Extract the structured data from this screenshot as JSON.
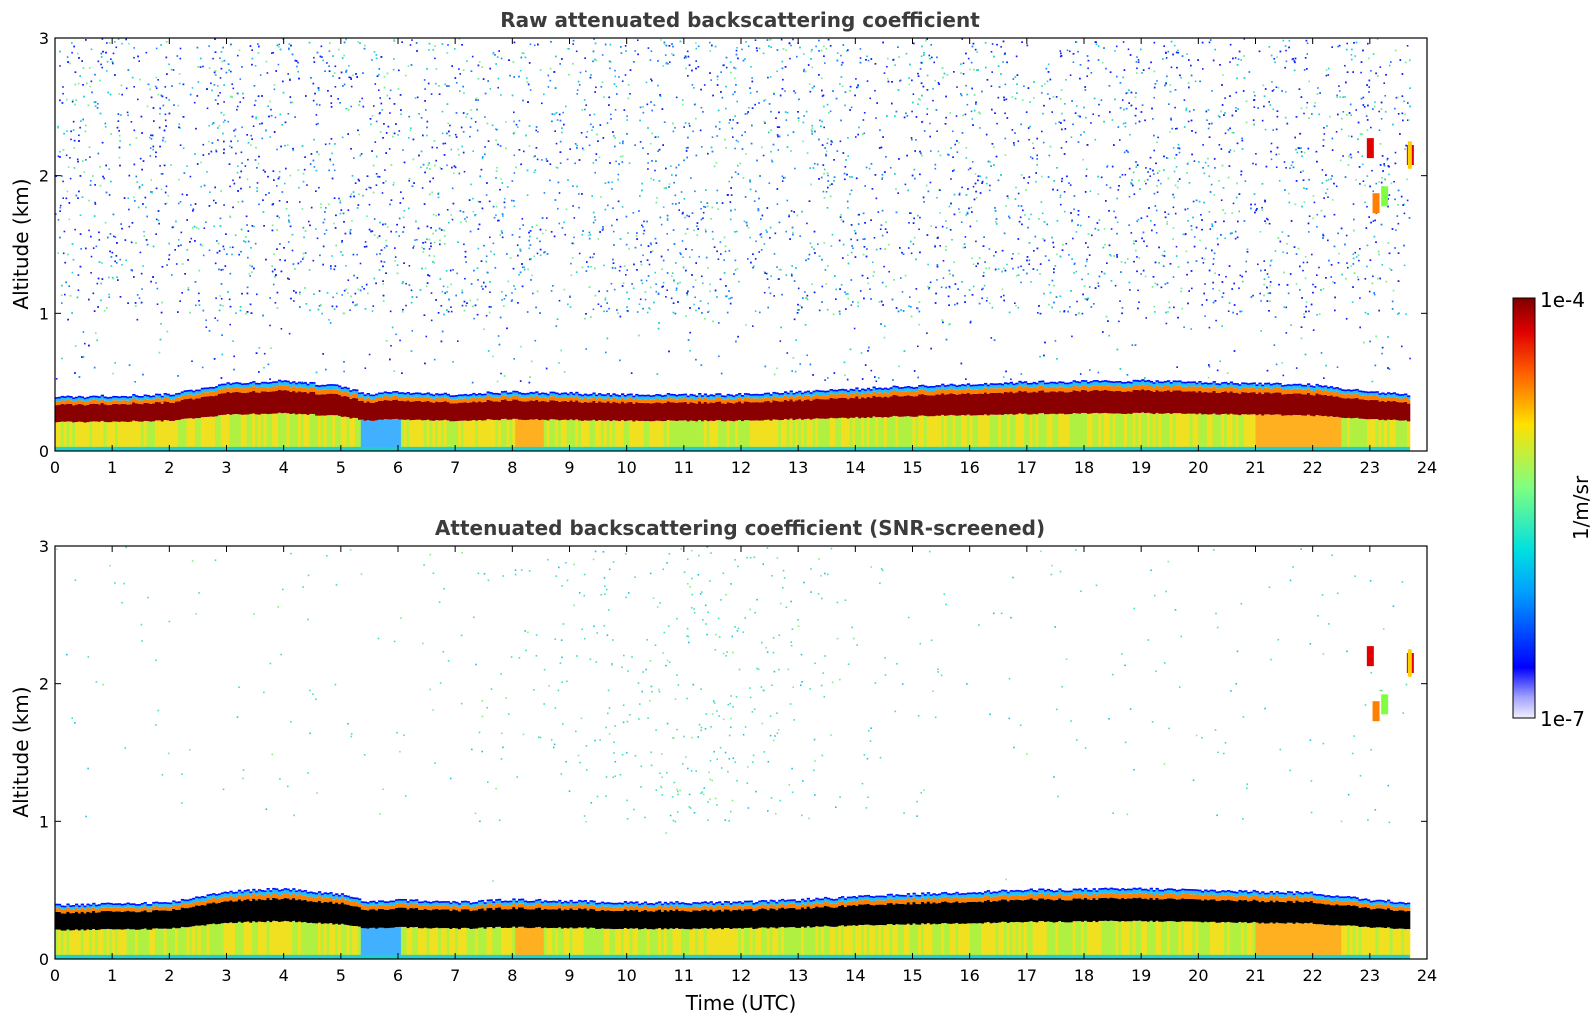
{
  "chart_data": [
    {
      "type": "heatmap",
      "title": "Raw attenuated backscattering coefficient",
      "xlabel": "",
      "ylabel": "Altitude (km)",
      "xlim": [
        0,
        24
      ],
      "ylim": [
        0,
        3
      ],
      "xticks": [
        "0",
        "1",
        "2",
        "3",
        "4",
        "5",
        "6",
        "7",
        "8",
        "9",
        "10",
        "11",
        "12",
        "13",
        "14",
        "15",
        "16",
        "17",
        "18",
        "19",
        "20",
        "21",
        "22",
        "23",
        "24"
      ],
      "yticks": [
        "0",
        "1",
        "2",
        "3"
      ],
      "screened": false
    },
    {
      "type": "heatmap",
      "title": "Attenuated backscattering coefficient (SNR-screened)",
      "xlabel": "Time (UTC)",
      "ylabel": "Altitude (km)",
      "xlim": [
        0,
        24
      ],
      "ylim": [
        0,
        3
      ],
      "xticks": [
        "0",
        "1",
        "2",
        "3",
        "4",
        "5",
        "6",
        "7",
        "8",
        "9",
        "10",
        "11",
        "12",
        "13",
        "14",
        "15",
        "16",
        "17",
        "18",
        "19",
        "20",
        "21",
        "22",
        "23",
        "24"
      ],
      "yticks": [
        "0",
        "1",
        "2",
        "3"
      ],
      "screened": true
    }
  ],
  "colorbar": {
    "label": "1/m/sr",
    "max_label": "1e-4",
    "min_label": "1e-7",
    "scale": "log",
    "colormap": "jet"
  },
  "layer": {
    "top_km": [
      [
        0,
        0.38
      ],
      [
        2,
        0.4
      ],
      [
        3,
        0.48
      ],
      [
        4,
        0.5
      ],
      [
        5,
        0.46
      ],
      [
        5.5,
        0.4
      ],
      [
        6,
        0.42
      ],
      [
        7,
        0.4
      ],
      [
        8,
        0.42
      ],
      [
        10,
        0.4
      ],
      [
        12,
        0.4
      ],
      [
        13,
        0.42
      ],
      [
        15,
        0.46
      ],
      [
        17,
        0.49
      ],
      [
        19,
        0.5
      ],
      [
        21,
        0.48
      ],
      [
        22,
        0.47
      ],
      [
        23,
        0.42
      ],
      [
        23.7,
        0.4
      ]
    ],
    "end_time": 23.7
  }
}
